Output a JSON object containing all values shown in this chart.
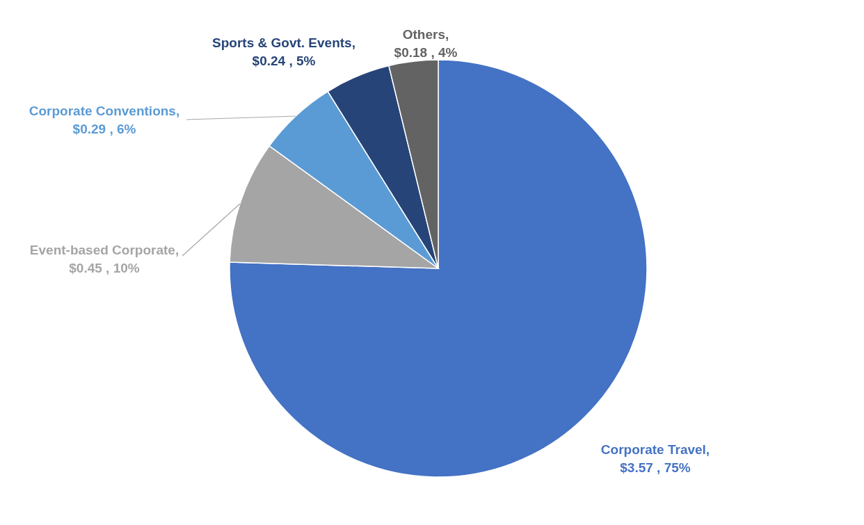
{
  "chart_data": {
    "type": "pie",
    "categories": [
      "Corporate Travel",
      "Event-based Corporate",
      "Corporate Conventions",
      "Sports & Govt. Events",
      "Others"
    ],
    "values": [
      3.57,
      0.45,
      0.29,
      0.24,
      0.18
    ],
    "value_labels": [
      ", $3.57 , 75%",
      ", $0.45 , 10%",
      ", $0.29 , 6%",
      ", $0.24 , 5%",
      ", $0.18 , 4%"
    ],
    "colors": [
      "#4472c4",
      "#a5a5a5",
      "#5b9bd5",
      "#264478",
      "#636363"
    ]
  }
}
